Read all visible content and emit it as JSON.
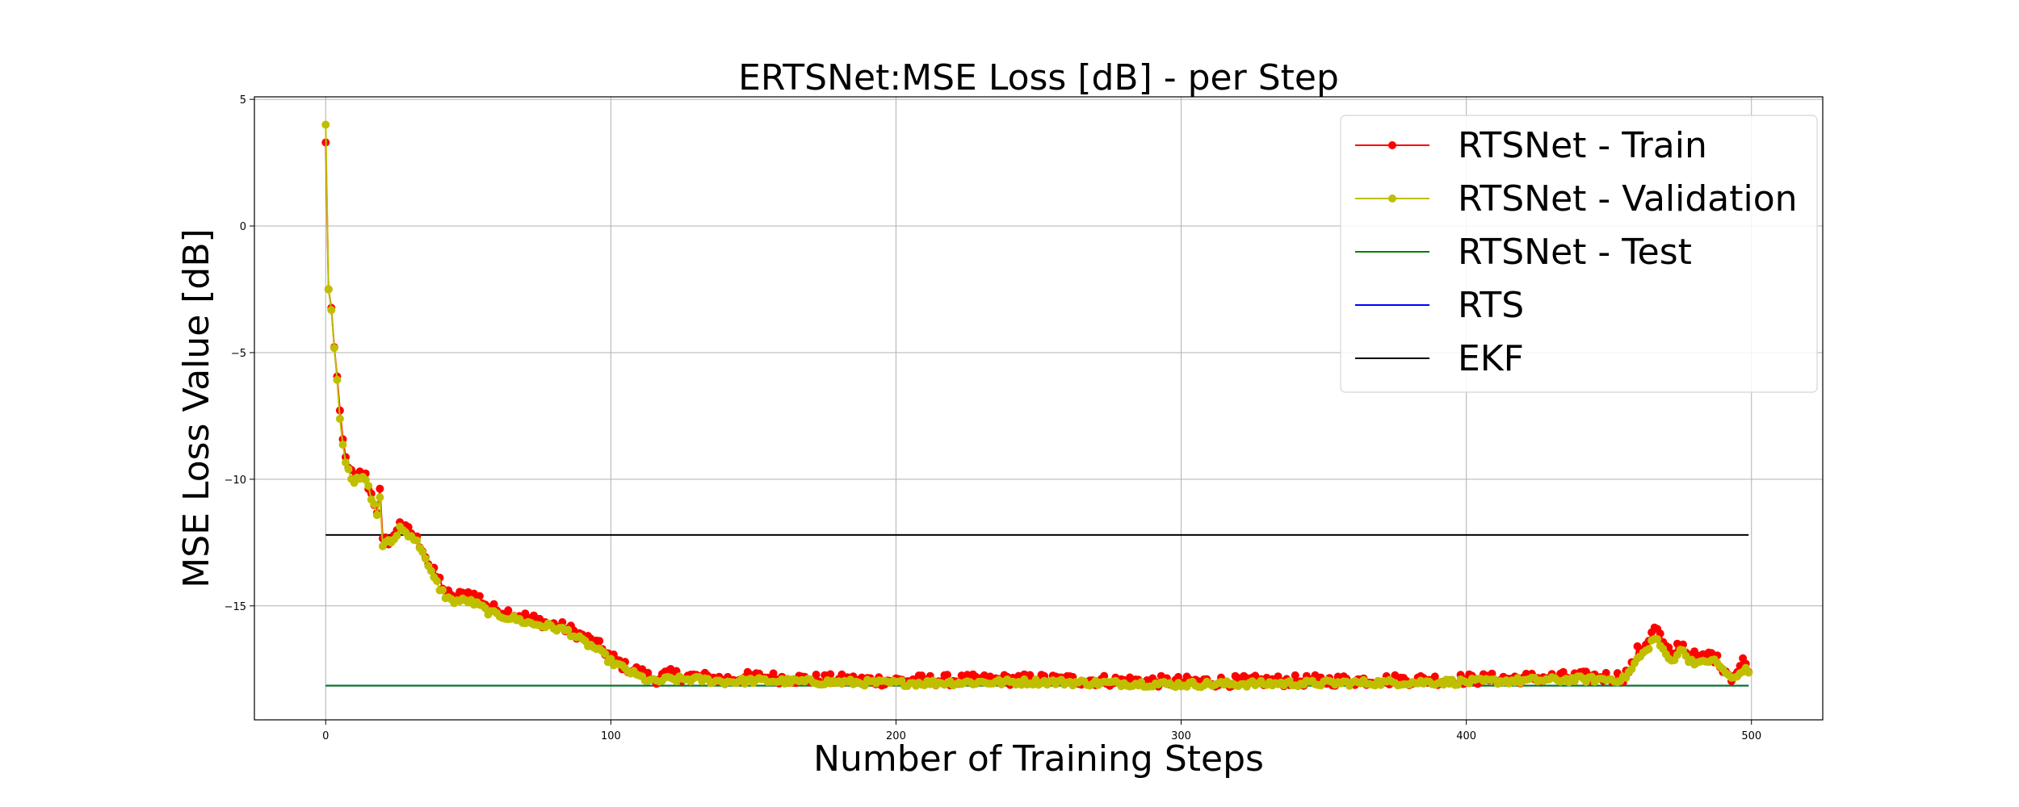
{
  "chart_data": {
    "type": "line",
    "title": "ERTSNet:MSE Loss [dB] - per Step",
    "xlabel": "Number of Training Steps",
    "ylabel": "MSE Loss Value [dB]",
    "xlim": [
      -25,
      525
    ],
    "ylim": [
      -19.5,
      5.1
    ],
    "xticks": [
      0,
      100,
      200,
      300,
      400,
      500
    ],
    "yticks": [
      5,
      0,
      -5,
      -10,
      -15
    ],
    "ytick_labels": [
      "5",
      "0",
      "−5",
      "−10",
      "−15"
    ],
    "grid": true,
    "legend_position": "top-right",
    "series": [
      {
        "name": "RTSNet - Train",
        "color": "#ff0000",
        "marker": "circle",
        "curve_anchors": [
          [
            0,
            3.3
          ],
          [
            1,
            -2.5
          ],
          [
            2,
            -3.3
          ],
          [
            3,
            -4.7
          ],
          [
            4,
            -6.0
          ],
          [
            5,
            -7.5
          ],
          [
            6,
            -8.5
          ],
          [
            7,
            -9.2
          ],
          [
            8,
            -9.4
          ],
          [
            9,
            -9.8
          ],
          [
            10,
            -10.1
          ],
          [
            12,
            -9.8
          ],
          [
            14,
            -9.9
          ],
          [
            16,
            -10.6
          ],
          [
            18,
            -11.2
          ],
          [
            19,
            -10.5
          ],
          [
            20,
            -12.5
          ],
          [
            22,
            -12.4
          ],
          [
            24,
            -12.3
          ],
          [
            26,
            -11.6
          ],
          [
            28,
            -12.0
          ],
          [
            30,
            -12.1
          ],
          [
            32,
            -12.4
          ],
          [
            34,
            -12.7
          ],
          [
            36,
            -13.3
          ],
          [
            38,
            -13.7
          ],
          [
            40,
            -14.0
          ],
          [
            42,
            -14.4
          ],
          [
            44,
            -14.7
          ],
          [
            47,
            -14.6
          ],
          [
            50,
            -14.5
          ],
          [
            54,
            -14.7
          ],
          [
            58,
            -15.1
          ],
          [
            62,
            -15.2
          ],
          [
            66,
            -15.3
          ],
          [
            72,
            -15.5
          ],
          [
            78,
            -15.7
          ],
          [
            85,
            -15.9
          ],
          [
            90,
            -16.2
          ],
          [
            95,
            -16.5
          ],
          [
            100,
            -17.0
          ],
          [
            105,
            -17.4
          ],
          [
            110,
            -17.6
          ],
          [
            115,
            -17.9
          ],
          [
            120,
            -17.7
          ],
          [
            130,
            -17.8
          ],
          [
            140,
            -17.9
          ],
          [
            150,
            -17.8
          ],
          [
            170,
            -17.9
          ],
          [
            200,
            -17.95
          ],
          [
            250,
            -17.9
          ],
          [
            300,
            -18.0
          ],
          [
            350,
            -17.95
          ],
          [
            400,
            -17.9
          ],
          [
            420,
            -17.85
          ],
          [
            440,
            -17.8
          ],
          [
            455,
            -17.8
          ],
          [
            458,
            -17.4
          ],
          [
            460,
            -16.8
          ],
          [
            463,
            -16.5
          ],
          [
            465,
            -16.0
          ],
          [
            467,
            -15.9
          ],
          [
            469,
            -16.5
          ],
          [
            472,
            -17.0
          ],
          [
            475,
            -16.4
          ],
          [
            478,
            -16.9
          ],
          [
            482,
            -17.1
          ],
          [
            486,
            -16.9
          ],
          [
            490,
            -17.4
          ],
          [
            493,
            -17.8
          ],
          [
            495,
            -17.6
          ],
          [
            497,
            -17.2
          ],
          [
            499,
            -17.4
          ]
        ],
        "noise_amplitude": 0.22
      },
      {
        "name": "RTSNet - Validation",
        "color": "#bfbf00",
        "marker": "circle",
        "curve_anchors": [
          [
            0,
            4.0
          ],
          [
            1,
            -2.5
          ],
          [
            2,
            -3.4
          ],
          [
            3,
            -4.7
          ],
          [
            4,
            -6.1
          ],
          [
            5,
            -7.5
          ],
          [
            6,
            -8.6
          ],
          [
            7,
            -9.3
          ],
          [
            8,
            -9.5
          ],
          [
            9,
            -9.9
          ],
          [
            10,
            -10.1
          ],
          [
            12,
            -10.0
          ],
          [
            14,
            -10.0
          ],
          [
            16,
            -10.7
          ],
          [
            18,
            -11.4
          ],
          [
            19,
            -10.7
          ],
          [
            20,
            -12.6
          ],
          [
            22,
            -12.5
          ],
          [
            24,
            -12.4
          ],
          [
            26,
            -11.9
          ],
          [
            28,
            -12.1
          ],
          [
            30,
            -12.2
          ],
          [
            32,
            -12.5
          ],
          [
            34,
            -12.8
          ],
          [
            36,
            -13.5
          ],
          [
            38,
            -13.9
          ],
          [
            40,
            -14.3
          ],
          [
            42,
            -14.6
          ],
          [
            44,
            -14.8
          ],
          [
            47,
            -14.8
          ],
          [
            50,
            -14.8
          ],
          [
            54,
            -15.0
          ],
          [
            58,
            -15.3
          ],
          [
            62,
            -15.4
          ],
          [
            66,
            -15.5
          ],
          [
            72,
            -15.7
          ],
          [
            78,
            -15.8
          ],
          [
            85,
            -16.0
          ],
          [
            90,
            -16.4
          ],
          [
            95,
            -16.7
          ],
          [
            100,
            -17.2
          ],
          [
            105,
            -17.5
          ],
          [
            110,
            -17.8
          ],
          [
            115,
            -18.0
          ],
          [
            120,
            -17.9
          ],
          [
            130,
            -17.9
          ],
          [
            140,
            -18.0
          ],
          [
            150,
            -17.95
          ],
          [
            170,
            -18.0
          ],
          [
            200,
            -18.05
          ],
          [
            250,
            -18.0
          ],
          [
            300,
            -18.1
          ],
          [
            350,
            -18.05
          ],
          [
            400,
            -18.0
          ],
          [
            420,
            -17.95
          ],
          [
            440,
            -17.9
          ],
          [
            455,
            -17.9
          ],
          [
            458,
            -17.5
          ],
          [
            460,
            -17.1
          ],
          [
            463,
            -16.8
          ],
          [
            465,
            -16.4
          ],
          [
            467,
            -16.3
          ],
          [
            469,
            -16.8
          ],
          [
            472,
            -17.2
          ],
          [
            475,
            -16.7
          ],
          [
            478,
            -17.1
          ],
          [
            482,
            -17.3
          ],
          [
            486,
            -17.1
          ],
          [
            490,
            -17.5
          ],
          [
            493,
            -17.9
          ],
          [
            495,
            -17.8
          ],
          [
            497,
            -17.5
          ],
          [
            499,
            -17.6
          ]
        ],
        "noise_amplitude": 0.12
      },
      {
        "name": "RTSNet - Test",
        "color": "#008000",
        "marker": "none",
        "x": [
          0,
          499
        ],
        "y": [
          -18.15,
          -18.15
        ]
      },
      {
        "name": "RTS",
        "color": "#0000ff",
        "marker": "none",
        "x": [
          0,
          499
        ],
        "y": [
          -18.15,
          -18.15
        ]
      },
      {
        "name": "EKF",
        "color": "#000000",
        "marker": "none",
        "x": [
          0,
          499
        ],
        "y": [
          -12.2,
          -12.2
        ]
      }
    ]
  }
}
